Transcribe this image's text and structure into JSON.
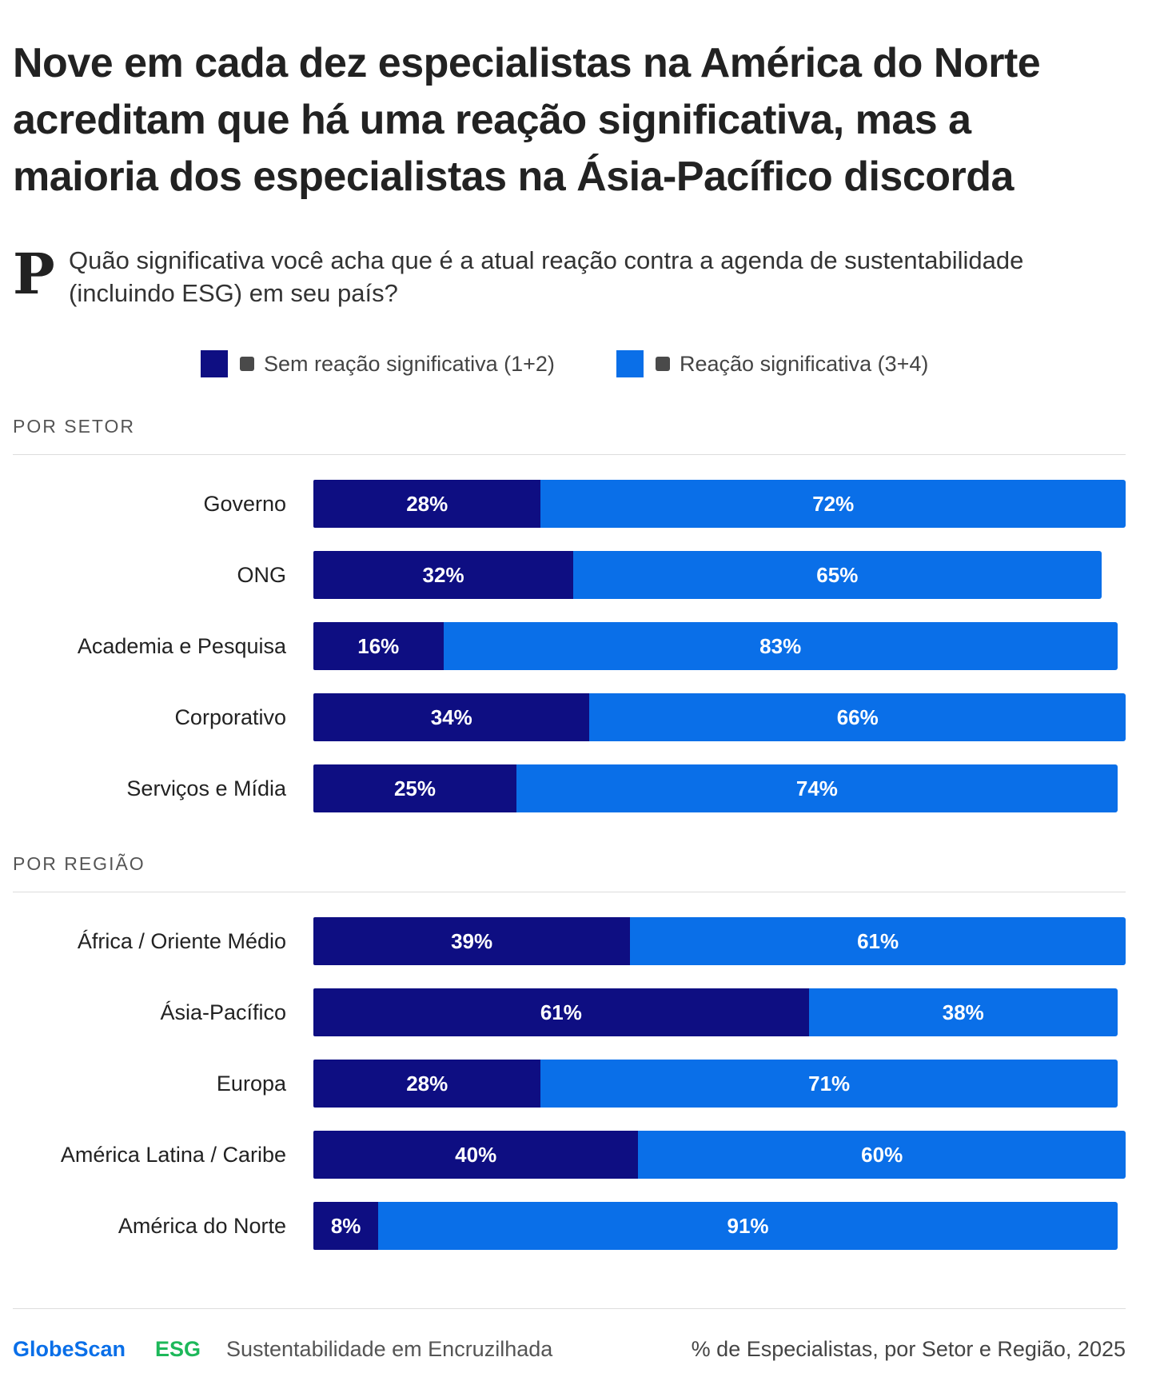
{
  "title": "Nove em cada dez especialistas na América do Norte acreditam que há uma reação significativa, mas a maioria dos especialistas na Ásia-Pacífico discorda",
  "question_letter": "P",
  "question": "Quão significativa você acha que é a atual reação contra a agenda de sustentabilidade (incluindo ESG) em seu país?",
  "legend": [
    {
      "label": "Sem reação significativa (1+2)",
      "color": "#0e0e82"
    },
    {
      "label": "Reação significativa (3+4)",
      "color": "#0a6fe8"
    }
  ],
  "colors": {
    "negative": "#0e0e82",
    "positive": "#0a6fe8"
  },
  "chart_data": {
    "type": "bar",
    "orientation": "horizontal",
    "stacked": true,
    "xlim": [
      0,
      100
    ],
    "unit": "%",
    "series": [
      {
        "name": "Sem reação significativa (1+2)"
      },
      {
        "name": "Reação significativa (3+4)"
      }
    ],
    "groups": [
      {
        "title": "POR SETOR",
        "rows": [
          {
            "label": "Governo",
            "neg": 28,
            "pos": 72
          },
          {
            "label": "ONG",
            "neg": 32,
            "pos": 65
          },
          {
            "label": "Academia e Pesquisa",
            "neg": 16,
            "pos": 83
          },
          {
            "label": "Corporativo",
            "neg": 34,
            "pos": 66
          },
          {
            "label": "Serviços e Mídia",
            "neg": 25,
            "pos": 74
          }
        ]
      },
      {
        "title": "POR REGIÃO",
        "rows": [
          {
            "label": "África / Oriente Médio",
            "neg": 39,
            "pos": 61
          },
          {
            "label": "Ásia-Pacífico",
            "neg": 61,
            "pos": 38
          },
          {
            "label": "Europa",
            "neg": 28,
            "pos": 71
          },
          {
            "label": "América Latina / Caribe",
            "neg": 40,
            "pos": 60
          },
          {
            "label": "América do Norte",
            "neg": 8,
            "pos": 91
          }
        ]
      }
    ]
  },
  "footer": {
    "brand": "GlobeScan",
    "brand_color": "#0a6fe8",
    "tag": "ESG",
    "tag_color": "#1db85a",
    "series_name": "Sustentabilidade em Encruzilhada",
    "note": "% de Especialistas, por Setor e Região, 2025"
  }
}
